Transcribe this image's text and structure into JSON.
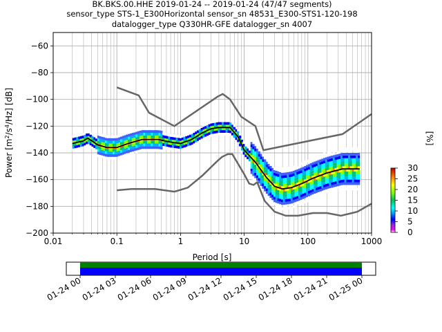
{
  "chart_data": {
    "type": "heatmap",
    "title_lines": [
      "BK.BKS.00.HHE   2019-01-24 -- 2019-01-24  (47/47 segments)",
      "sensor_type STS-1_E300Horizontal sensor_sn 48531_E300-STS1-120-198",
      "datalogger_type Q330HR-GFE datalogger_sn 4007"
    ],
    "xlabel": "Period [s]",
    "ylabel": "Power [m^2/s^4/Hz] [dB]",
    "x_scale": "log",
    "xlim": [
      0.01,
      1000
    ],
    "ylim": [
      -200,
      -50
    ],
    "x_ticks": [
      {
        "value": 0.01,
        "label": "0.01"
      },
      {
        "value": 0.1,
        "label": "0.1"
      },
      {
        "value": 1,
        "label": "1"
      },
      {
        "value": 10,
        "label": "10"
      },
      {
        "value": 100,
        "label": "100"
      },
      {
        "value": 1000,
        "label": "1000"
      }
    ],
    "y_ticks": [
      -60,
      -80,
      -100,
      -120,
      -140,
      -160,
      -180,
      -200
    ],
    "grid": true,
    "colorbar": {
      "label": "[%]",
      "min": 0,
      "max": 30,
      "ticks": [
        0,
        5,
        10,
        15,
        20,
        25,
        30
      ]
    },
    "model_curves": {
      "color": "#666666",
      "high_noise_model": [
        [
          0.1,
          -91
        ],
        [
          0.22,
          -97
        ],
        [
          0.32,
          -110
        ],
        [
          0.8,
          -120
        ],
        [
          3.8,
          -98
        ],
        [
          4.6,
          -96
        ],
        [
          6,
          -100
        ],
        [
          9,
          -113
        ],
        [
          15,
          -120
        ],
        [
          20,
          -138
        ],
        [
          350,
          -126
        ],
        [
          1000,
          -111
        ]
      ],
      "low_noise_model": [
        [
          0.1,
          -168
        ],
        [
          0.17,
          -167
        ],
        [
          0.4,
          -167
        ],
        [
          0.8,
          -169
        ],
        [
          1.3,
          -166
        ],
        [
          2.2,
          -157
        ],
        [
          3.8,
          -146
        ],
        [
          4.5,
          -143
        ],
        [
          5.5,
          -141
        ],
        [
          6.5,
          -141
        ],
        [
          10,
          -156
        ],
        [
          12,
          -163
        ],
        [
          14,
          -164
        ],
        [
          16,
          -162
        ],
        [
          21,
          -176
        ],
        [
          30,
          -184
        ],
        [
          45,
          -187
        ],
        [
          70,
          -187
        ],
        [
          120,
          -185
        ],
        [
          200,
          -185
        ],
        [
          330,
          -187
        ],
        [
          600,
          -184
        ],
        [
          1000,
          -178
        ]
      ]
    },
    "median_curve": {
      "color": "#000000",
      "points": [
        [
          0.02,
          -133
        ],
        [
          0.03,
          -131
        ],
        [
          0.035,
          -129
        ],
        [
          0.05,
          -134
        ],
        [
          0.07,
          -136
        ],
        [
          0.1,
          -136
        ],
        [
          0.15,
          -133
        ],
        [
          0.25,
          -130
        ],
        [
          0.45,
          -130
        ],
        [
          0.7,
          -132
        ],
        [
          1,
          -133
        ],
        [
          1.5,
          -130
        ],
        [
          2.2,
          -125
        ],
        [
          3,
          -122
        ],
        [
          4,
          -121
        ],
        [
          6,
          -121
        ],
        [
          8,
          -128
        ],
        [
          10,
          -138
        ],
        [
          15,
          -147
        ],
        [
          22,
          -158
        ],
        [
          30,
          -165
        ],
        [
          40,
          -167
        ],
        [
          55,
          -166
        ],
        [
          80,
          -163
        ],
        [
          120,
          -159
        ],
        [
          200,
          -155
        ],
        [
          350,
          -152
        ],
        [
          650,
          -152
        ]
      ]
    },
    "data_band": {
      "x_range": [
        0.02,
        650
      ],
      "spread_db_max": 15
    },
    "timeline": {
      "tick_labels": [
        "01-24 00",
        "01-24 03",
        "01-24 06",
        "01-24 09",
        "01-24 12",
        "01-24 15",
        "01-24 18",
        "01-24 21",
        "01-25 00"
      ],
      "coverage": [
        0,
        1
      ]
    }
  }
}
